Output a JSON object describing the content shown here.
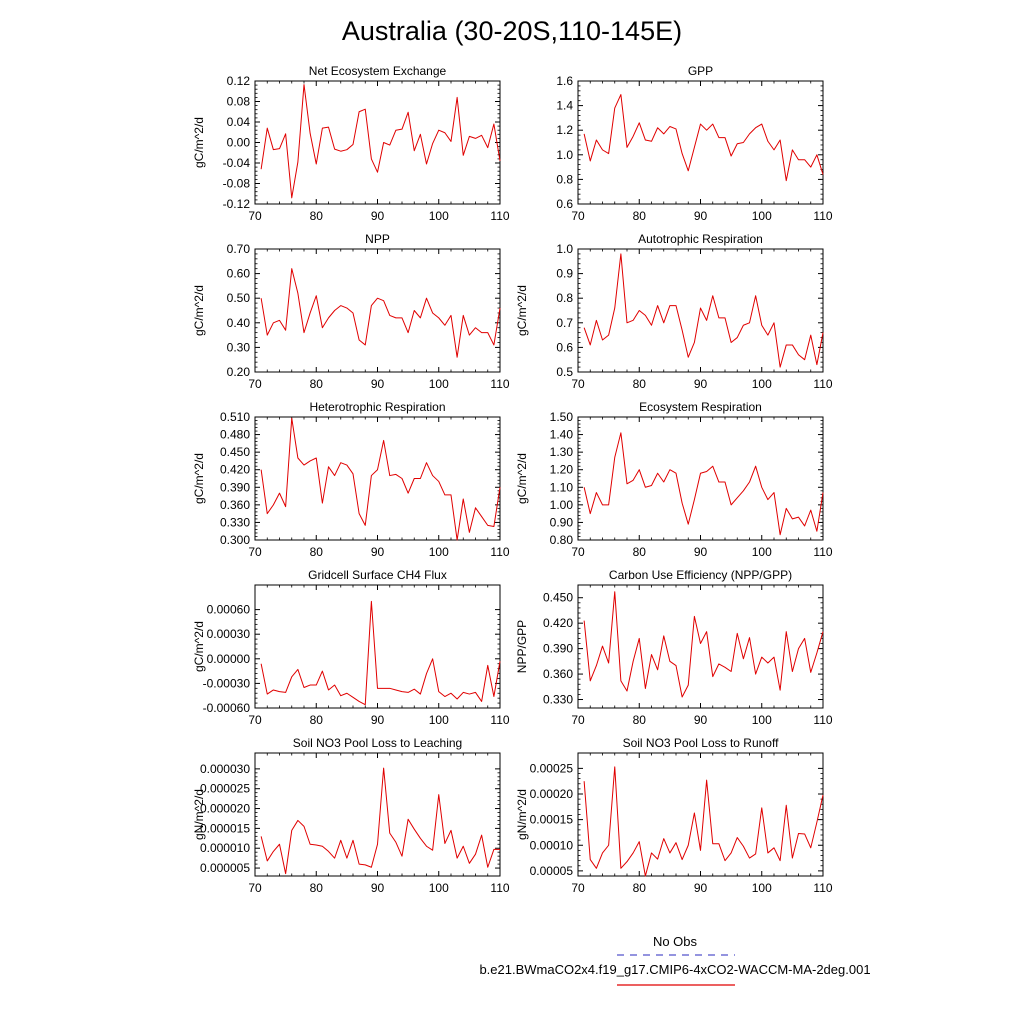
{
  "title": "Australia (30-20S,110-145E)",
  "legend": {
    "obs_label": "No Obs",
    "obs_color": "#5555cc",
    "case_label": "b.e21.BWmaCO2x4.f19_g17.CMIP6-4xCO2-WACCM-MA-2deg.001",
    "case_color": "#e00000"
  },
  "line_color": "#e00000",
  "chart_data": [
    {
      "type": "line",
      "title": "Net Ecosystem Exchange",
      "ylabel": "gC/m^2/d",
      "xlim": [
        70,
        110
      ],
      "xticks": [
        70,
        80,
        90,
        100,
        110
      ],
      "ylim": [
        -0.12,
        0.12
      ],
      "yticks": [
        -0.12,
        -0.08,
        -0.04,
        0.0,
        0.04,
        0.08,
        0.12
      ],
      "ytick_labels": [
        "-0.12",
        "-0.08",
        "-0.04",
        "0.00",
        "0.04",
        "0.08",
        "0.12"
      ],
      "x_start": 71,
      "values": [
        -0.052,
        0.028,
        -0.014,
        -0.012,
        0.017,
        -0.108,
        -0.038,
        0.113,
        0.018,
        -0.042,
        0.028,
        0.03,
        -0.013,
        -0.017,
        -0.014,
        -0.004,
        0.06,
        0.065,
        -0.032,
        -0.058,
        0.0,
        -0.005,
        0.024,
        0.026,
        0.059,
        -0.016,
        0.016,
        -0.042,
        -0.002,
        0.024,
        0.019,
        0.002,
        0.088,
        -0.025,
        0.012,
        0.008,
        0.014,
        -0.01,
        0.036,
        -0.036
      ]
    },
    {
      "type": "line",
      "title": "GPP",
      "ylabel": "",
      "xlim": [
        70,
        110
      ],
      "xticks": [
        70,
        80,
        90,
        100,
        110
      ],
      "ylim": [
        0.6,
        1.6
      ],
      "yticks": [
        0.6,
        0.8,
        1.0,
        1.2,
        1.4,
        1.6
      ],
      "ytick_labels": [
        "0.6",
        "0.8",
        "1.0",
        "1.2",
        "1.4",
        "1.6"
      ],
      "x_start": 71,
      "values": [
        1.17,
        0.95,
        1.12,
        1.04,
        1.01,
        1.38,
        1.49,
        1.06,
        1.15,
        1.26,
        1.12,
        1.11,
        1.22,
        1.17,
        1.23,
        1.21,
        1.01,
        0.87,
        1.06,
        1.25,
        1.2,
        1.25,
        1.14,
        1.14,
        0.99,
        1.09,
        1.1,
        1.17,
        1.22,
        1.25,
        1.11,
        1.04,
        1.12,
        0.79,
        1.04,
        0.96,
        0.96,
        0.9,
        1.0,
        0.84
      ]
    },
    {
      "type": "line",
      "title": "NPP",
      "ylabel": "gC/m^2/d",
      "xlim": [
        70,
        110
      ],
      "xticks": [
        70,
        80,
        90,
        100,
        110
      ],
      "ylim": [
        0.2,
        0.7
      ],
      "yticks": [
        0.2,
        0.3,
        0.4,
        0.5,
        0.6,
        0.7
      ],
      "ytick_labels": [
        "0.20",
        "0.30",
        "0.40",
        "0.50",
        "0.60",
        "0.70"
      ],
      "x_start": 71,
      "values": [
        0.5,
        0.35,
        0.4,
        0.41,
        0.37,
        0.62,
        0.52,
        0.36,
        0.44,
        0.51,
        0.38,
        0.42,
        0.45,
        0.47,
        0.46,
        0.44,
        0.33,
        0.31,
        0.47,
        0.5,
        0.49,
        0.43,
        0.42,
        0.42,
        0.36,
        0.45,
        0.42,
        0.5,
        0.44,
        0.42,
        0.39,
        0.43,
        0.26,
        0.43,
        0.35,
        0.38,
        0.36,
        0.36,
        0.31,
        0.46
      ]
    },
    {
      "type": "line",
      "title": "Autotrophic Respiration",
      "ylabel": "gC/m^2/d",
      "xlim": [
        70,
        110
      ],
      "xticks": [
        70,
        80,
        90,
        100,
        110
      ],
      "ylim": [
        0.5,
        1.0
      ],
      "yticks": [
        0.5,
        0.6,
        0.7,
        0.8,
        0.9,
        1.0
      ],
      "ytick_labels": [
        "0.5",
        "0.6",
        "0.7",
        "0.8",
        "0.9",
        "1.0"
      ],
      "x_start": 71,
      "values": [
        0.68,
        0.61,
        0.71,
        0.63,
        0.65,
        0.76,
        0.98,
        0.7,
        0.71,
        0.75,
        0.73,
        0.69,
        0.77,
        0.7,
        0.77,
        0.77,
        0.67,
        0.56,
        0.62,
        0.76,
        0.71,
        0.81,
        0.72,
        0.72,
        0.62,
        0.64,
        0.69,
        0.7,
        0.81,
        0.69,
        0.65,
        0.7,
        0.52,
        0.61,
        0.61,
        0.57,
        0.55,
        0.65,
        0.53,
        0.66
      ]
    },
    {
      "type": "line",
      "title": "Heterotrophic Respiration",
      "ylabel": "gC/m^2/d",
      "xlim": [
        70,
        110
      ],
      "xticks": [
        70,
        80,
        90,
        100,
        110
      ],
      "ylim": [
        0.3,
        0.51
      ],
      "yticks": [
        0.3,
        0.33,
        0.36,
        0.39,
        0.42,
        0.45,
        0.48,
        0.51
      ],
      "ytick_labels": [
        "0.300",
        "0.330",
        "0.360",
        "0.390",
        "0.420",
        "0.450",
        "0.480",
        "0.510"
      ],
      "x_start": 71,
      "values": [
        0.42,
        0.345,
        0.36,
        0.38,
        0.357,
        0.508,
        0.44,
        0.428,
        0.435,
        0.44,
        0.363,
        0.425,
        0.41,
        0.432,
        0.428,
        0.413,
        0.345,
        0.325,
        0.41,
        0.42,
        0.47,
        0.41,
        0.412,
        0.405,
        0.38,
        0.405,
        0.405,
        0.432,
        0.41,
        0.4,
        0.377,
        0.377,
        0.3,
        0.37,
        0.313,
        0.355,
        0.34,
        0.325,
        0.323,
        0.39
      ]
    },
    {
      "type": "line",
      "title": "Ecosystem Respiration",
      "ylabel": "gC/m^2/d",
      "xlim": [
        70,
        110
      ],
      "xticks": [
        70,
        80,
        90,
        100,
        110
      ],
      "ylim": [
        0.8,
        1.5
      ],
      "yticks": [
        0.8,
        0.9,
        1.0,
        1.1,
        1.2,
        1.3,
        1.4,
        1.5
      ],
      "ytick_labels": [
        "0.80",
        "0.90",
        "1.00",
        "1.10",
        "1.20",
        "1.30",
        "1.40",
        "1.50"
      ],
      "x_start": 71,
      "values": [
        1.1,
        0.95,
        1.07,
        1.0,
        1.0,
        1.27,
        1.41,
        1.12,
        1.14,
        1.2,
        1.1,
        1.11,
        1.18,
        1.13,
        1.2,
        1.18,
        1.01,
        0.89,
        1.03,
        1.18,
        1.19,
        1.22,
        1.13,
        1.13,
        1.0,
        1.04,
        1.08,
        1.13,
        1.22,
        1.1,
        1.03,
        1.07,
        0.83,
        0.98,
        0.92,
        0.93,
        0.88,
        0.97,
        0.85,
        1.07
      ]
    },
    {
      "type": "line",
      "title": "Gridcell Surface CH4 Flux",
      "ylabel": "gC/m^2/d",
      "xlim": [
        70,
        110
      ],
      "xticks": [
        70,
        80,
        90,
        100,
        110
      ],
      "ylim": [
        -0.0006,
        0.0009
      ],
      "yticks": [
        -0.0006,
        -0.0003,
        0.0,
        0.0003,
        0.0006
      ],
      "ytick_labels": [
        "-0.00060",
        "-0.00030",
        "0.00000",
        "0.00030",
        "0.00060"
      ],
      "x_start": 71,
      "values": [
        -6e-05,
        -0.00043,
        -0.00038,
        -0.0004,
        -0.00041,
        -0.00022,
        -0.00013,
        -0.00035,
        -0.00032,
        -0.00032,
        -0.00015,
        -0.00038,
        -0.00032,
        -0.00045,
        -0.00042,
        -0.00047,
        -0.00052,
        -0.00056,
        0.0007,
        -0.00036,
        -0.00036,
        -0.00036,
        -0.00038,
        -0.0004,
        -0.00041,
        -0.00037,
        -0.00043,
        -0.00018,
        0.0,
        -0.0004,
        -0.00046,
        -0.00042,
        -0.00049,
        -0.00041,
        -0.00043,
        -0.00041,
        -0.00052,
        -8e-05,
        -0.00046,
        -3e-05
      ]
    },
    {
      "type": "line",
      "title": "Carbon Use Efficiency (NPP/GPP)",
      "ylabel": "NPP/GPP",
      "xlim": [
        70,
        110
      ],
      "xticks": [
        70,
        80,
        90,
        100,
        110
      ],
      "ylim": [
        0.32,
        0.465
      ],
      "yticks": [
        0.33,
        0.36,
        0.39,
        0.42,
        0.45
      ],
      "ytick_labels": [
        "0.330",
        "0.360",
        "0.390",
        "0.420",
        "0.450"
      ],
      "x_start": 71,
      "values": [
        0.423,
        0.352,
        0.37,
        0.393,
        0.373,
        0.457,
        0.352,
        0.34,
        0.375,
        0.402,
        0.343,
        0.383,
        0.365,
        0.405,
        0.375,
        0.37,
        0.333,
        0.347,
        0.428,
        0.396,
        0.41,
        0.357,
        0.372,
        0.368,
        0.363,
        0.408,
        0.378,
        0.403,
        0.36,
        0.38,
        0.373,
        0.38,
        0.341,
        0.41,
        0.363,
        0.39,
        0.402,
        0.362,
        0.385,
        0.41
      ]
    },
    {
      "type": "line",
      "title": "Soil NO3 Pool Loss to Leaching",
      "ylabel": "gN/m^2/d",
      "xlim": [
        70,
        110
      ],
      "xticks": [
        70,
        80,
        90,
        100,
        110
      ],
      "ylim": [
        3e-06,
        3.4e-05
      ],
      "yticks": [
        5e-06,
        1e-05,
        1.5e-05,
        2e-05,
        2.5e-05,
        3e-05
      ],
      "ytick_labels": [
        "0.000005",
        "0.000010",
        "0.000015",
        "0.000020",
        "0.000025",
        "0.000030"
      ],
      "x_start": 71,
      "values": [
        1.3e-05,
        6.8e-06,
        9.2e-06,
        1.1e-05,
        3.6e-06,
        1.45e-05,
        1.7e-05,
        1.55e-05,
        1.1e-05,
        1.08e-05,
        1.05e-05,
        9.2e-06,
        7.5e-06,
        1.2e-05,
        7.5e-06,
        1.2e-05,
        6e-06,
        5.8e-06,
        5.2e-06,
        1.1e-05,
        3.02e-05,
        1.38e-05,
        1.15e-05,
        8e-06,
        1.73e-05,
        1.48e-05,
        1.25e-05,
        1.05e-05,
        9.5e-06,
        2.35e-05,
        1.12e-05,
        1.45e-05,
        7.5e-06,
        1.05e-05,
        6.2e-06,
        8.5e-06,
        1.33e-05,
        5.2e-06,
        9.7e-06,
        9.7e-06
      ]
    },
    {
      "type": "line",
      "title": "Soil NO3 Pool Loss to Runoff",
      "ylabel": "gN/m^2/d",
      "xlim": [
        70,
        110
      ],
      "xticks": [
        70,
        80,
        90,
        100,
        110
      ],
      "ylim": [
        4e-05,
        0.00028
      ],
      "yticks": [
        5e-05,
        0.0001,
        0.00015,
        0.0002,
        0.00025
      ],
      "ytick_labels": [
        "0.00005",
        "0.00010",
        "0.00015",
        "0.00020",
        "0.00025"
      ],
      "x_start": 71,
      "values": [
        0.000225,
        7.2e-05,
        5.5e-05,
        8.5e-05,
        0.0001,
        0.000253,
        5.5e-05,
        6.8e-05,
        8.5e-05,
        0.000107,
        4e-05,
        8.5e-05,
        7.3e-05,
        0.000113,
        8.5e-05,
        0.000105,
        7.2e-05,
        0.0001,
        0.000163,
        9e-05,
        0.000227,
        0.000103,
        0.000103,
        7e-05,
        8.5e-05,
        0.000115,
        9.8e-05,
        7.5e-05,
        8.3e-05,
        0.000173,
        8.5e-05,
        9.5e-05,
        7e-05,
        0.000178,
        7.5e-05,
        0.000123,
        0.000122,
        9.5e-05,
        0.000145,
        0.000198
      ]
    }
  ]
}
